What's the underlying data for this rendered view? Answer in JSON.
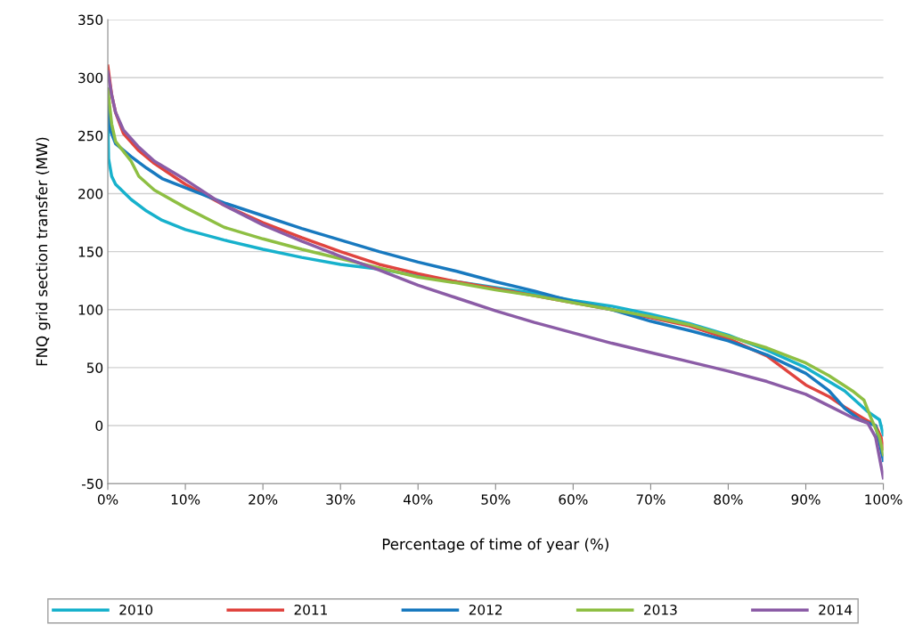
{
  "chart_data": {
    "type": "line",
    "xlabel": "Percentage of time of year (%)",
    "ylabel": "FNQ grid section transfer (MW)",
    "xlim": [
      0,
      100
    ],
    "ylim": [
      -50,
      350
    ],
    "xticks": [
      {
        "value": 0,
        "label": "0%"
      },
      {
        "value": 10,
        "label": "10%"
      },
      {
        "value": 20,
        "label": "20%"
      },
      {
        "value": 30,
        "label": "30%"
      },
      {
        "value": 40,
        "label": "40%"
      },
      {
        "value": 50,
        "label": "50%"
      },
      {
        "value": 60,
        "label": "60%"
      },
      {
        "value": 70,
        "label": "70%"
      },
      {
        "value": 80,
        "label": "80%"
      },
      {
        "value": 90,
        "label": "90%"
      },
      {
        "value": 100,
        "label": "100%"
      }
    ],
    "yticks": [
      -50,
      0,
      50,
      100,
      150,
      200,
      250,
      300,
      350
    ],
    "grid": "y",
    "legend": "bottom",
    "marker": "none",
    "line_style": "solid",
    "series": [
      {
        "name": "2010",
        "color": "#17b1cc",
        "x": [
          0,
          0.1,
          0.5,
          1,
          3,
          5,
          7,
          10,
          15,
          20,
          25,
          30,
          35,
          40,
          45,
          50,
          55,
          60,
          65,
          70,
          75,
          80,
          85,
          90,
          95,
          98,
          99.5,
          100
        ],
        "values": [
          265,
          230,
          215,
          208,
          195,
          185,
          177,
          169,
          160,
          152,
          145,
          139,
          135,
          129,
          124,
          119,
          114,
          108,
          103,
          96,
          88,
          78,
          65,
          50,
          30,
          12,
          5,
          -8
        ]
      },
      {
        "name": "2011",
        "color": "#e0443f",
        "x": [
          0,
          0.5,
          1,
          2,
          4,
          6,
          10,
          15,
          20,
          25,
          30,
          35,
          40,
          45,
          50,
          55,
          60,
          65,
          70,
          75,
          80,
          85,
          88,
          90,
          93,
          95,
          97,
          99,
          99.7,
          100
        ],
        "values": [
          310,
          285,
          270,
          252,
          237,
          226,
          208,
          190,
          175,
          162,
          150,
          139,
          131,
          124,
          118,
          112,
          106,
          100,
          93,
          86,
          75,
          60,
          45,
          35,
          25,
          16,
          8,
          0,
          -10,
          -20
        ]
      },
      {
        "name": "2012",
        "color": "#1879bf",
        "x": [
          0,
          0.3,
          1,
          3,
          5,
          7,
          10,
          15,
          20,
          25,
          30,
          35,
          40,
          45,
          50,
          55,
          60,
          65,
          70,
          75,
          80,
          85,
          90,
          93,
          95,
          97,
          99,
          100
        ],
        "values": [
          290,
          255,
          243,
          232,
          222,
          213,
          205,
          192,
          181,
          170,
          160,
          150,
          141,
          133,
          124,
          116,
          107,
          100,
          90,
          82,
          73,
          61,
          45,
          30,
          15,
          5,
          0,
          -30
        ]
      },
      {
        "name": "2013",
        "color": "#8ebf43",
        "x": [
          0,
          0.5,
          1,
          3,
          4,
          6,
          10,
          15,
          20,
          25,
          30,
          35,
          40,
          45,
          50,
          55,
          60,
          65,
          70,
          75,
          80,
          85,
          90,
          93,
          96,
          97.5,
          98.5,
          99.5,
          100
        ],
        "values": [
          290,
          260,
          245,
          228,
          215,
          203,
          188,
          171,
          161,
          152,
          144,
          136,
          128,
          123,
          117,
          112,
          106,
          100,
          94,
          87,
          77,
          67,
          54,
          43,
          30,
          22,
          5,
          -10,
          -25
        ]
      },
      {
        "name": "2014",
        "color": "#8b5ca6",
        "x": [
          0,
          0.5,
          1,
          2,
          4,
          6,
          10,
          15,
          20,
          25,
          30,
          35,
          40,
          45,
          50,
          55,
          60,
          65,
          70,
          75,
          80,
          85,
          90,
          93,
          96,
          98,
          99,
          100
        ],
        "values": [
          305,
          285,
          270,
          255,
          240,
          228,
          212,
          190,
          173,
          159,
          146,
          134,
          121,
          110,
          99,
          89,
          80,
          71,
          63,
          55,
          47,
          38,
          27,
          17,
          7,
          2,
          -10,
          -45
        ]
      }
    ]
  }
}
